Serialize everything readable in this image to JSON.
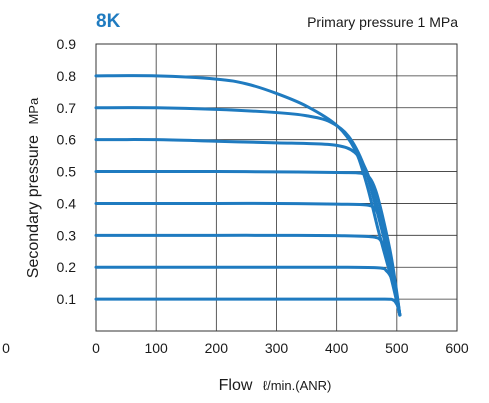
{
  "chart_data": {
    "type": "line",
    "title": "8K",
    "subtitle": "Primary pressure 1 MPa",
    "xlabel": "Flow",
    "xlabel_unit": "ℓ/min.(ANR)",
    "ylabel": "Secondary pressure",
    "ylabel_unit": "MPa",
    "xlim": [
      0,
      600
    ],
    "ylim": [
      0,
      0.9
    ],
    "x_ticks": [
      "0",
      "100",
      "200",
      "300",
      "400",
      "500",
      "600"
    ],
    "y_ticks": [
      "0.1",
      "0.2",
      "0.3",
      "0.4",
      "0.5",
      "0.6",
      "0.7",
      "0.8",
      "0.9"
    ],
    "origin_label": "0",
    "grid": true,
    "line_color": "#1f7bc0",
    "title_color": "#1f7bc0",
    "series": [
      {
        "x": [
          0,
          100,
          200,
          250,
          300,
          350,
          400,
          430,
          450,
          470,
          490,
          505
        ],
        "y": [
          0.8,
          0.8,
          0.79,
          0.775,
          0.745,
          0.705,
          0.645,
          0.57,
          0.46,
          0.31,
          0.17,
          0.05
        ]
      },
      {
        "x": [
          0,
          100,
          200,
          300,
          350,
          390,
          420,
          445,
          465,
          485,
          500,
          505
        ],
        "y": [
          0.7,
          0.7,
          0.695,
          0.685,
          0.675,
          0.655,
          0.61,
          0.52,
          0.39,
          0.24,
          0.1,
          0.05
        ]
      },
      {
        "x": [
          0,
          100,
          200,
          300,
          350,
          400,
          430,
          450,
          465,
          480,
          495,
          505
        ],
        "y": [
          0.6,
          0.6,
          0.595,
          0.59,
          0.588,
          0.582,
          0.56,
          0.5,
          0.41,
          0.29,
          0.14,
          0.05
        ]
      },
      {
        "x": [
          0,
          100,
          200,
          300,
          400,
          440,
          455,
          465,
          475,
          490,
          500,
          505
        ],
        "y": [
          0.5,
          0.5,
          0.5,
          0.499,
          0.497,
          0.495,
          0.48,
          0.44,
          0.37,
          0.24,
          0.12,
          0.05
        ]
      },
      {
        "x": [
          0,
          100,
          200,
          300,
          400,
          450,
          465,
          475,
          485,
          495,
          505
        ],
        "y": [
          0.4,
          0.4,
          0.4,
          0.4,
          0.398,
          0.395,
          0.38,
          0.34,
          0.27,
          0.17,
          0.05
        ]
      },
      {
        "x": [
          0,
          100,
          200,
          300,
          400,
          460,
          475,
          483,
          490,
          498,
          505
        ],
        "y": [
          0.3,
          0.3,
          0.3,
          0.3,
          0.299,
          0.295,
          0.28,
          0.25,
          0.2,
          0.13,
          0.05
        ]
      },
      {
        "x": [
          0,
          100,
          200,
          300,
          400,
          470,
          483,
          490,
          496,
          501,
          505
        ],
        "y": [
          0.2,
          0.2,
          0.2,
          0.2,
          0.2,
          0.198,
          0.188,
          0.17,
          0.14,
          0.1,
          0.05
        ]
      },
      {
        "x": [
          0,
          100,
          200,
          300,
          400,
          480,
          493,
          498,
          502,
          505
        ],
        "y": [
          0.1,
          0.1,
          0.1,
          0.1,
          0.1,
          0.1,
          0.098,
          0.09,
          0.075,
          0.05
        ]
      }
    ]
  }
}
